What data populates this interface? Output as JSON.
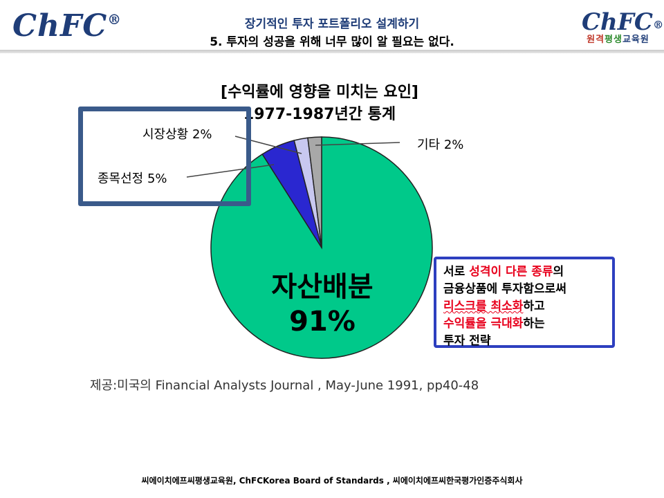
{
  "header": {
    "logo_left": "ChFC",
    "logo_mark": "®",
    "logo_right": "ChFC",
    "logo_right_sub": [
      "원격",
      "평생",
      "교육원"
    ],
    "logo_right_sub_colors": [
      "#c0392b",
      "#2e8b2e",
      "#1f3d78"
    ],
    "title_line1": "장기적인 투자 포트폴리오 설계하기",
    "title_line2": "5. 투자의 성공을 위해 너무 많이 알 필요는 없다."
  },
  "chart_data": {
    "type": "pie",
    "title": "[수익률에 영향을 미치는 요인]",
    "subtitle": "1977-1987년간 통계",
    "slices": [
      {
        "label": "자산배분",
        "value": 91,
        "display": "91%",
        "color": "#00c98a"
      },
      {
        "label": "종목선정",
        "value": 5,
        "display": "5%",
        "color": "#2a27d0"
      },
      {
        "label": "시장상황",
        "value": 2,
        "display": "2%",
        "color": "#c8c8f0"
      },
      {
        "label": "기타",
        "value": 2,
        "display": "2%",
        "color": "#a8a8a8"
      }
    ],
    "callout_labels": {
      "market": "시장상황 2%",
      "stock": "종목선정 5%",
      "other": "기타 2%"
    }
  },
  "note": {
    "l1a": "서로 ",
    "l1b": "성격이 다른 종류",
    "l1c": "의",
    "l2": "금융상품에 투자함으로써",
    "l3a": "리스크를 최소화",
    "l3b": "하고",
    "l4a": "수익률을 극대화",
    "l4b": "하는",
    "l5": "투자 전략"
  },
  "source": "제공:미국의 Financial Analysts Journal , May-June 1991, pp40-48",
  "footer": "씨에이치에프씨평생교육원,  ChFCKorea  Board  of  Standards  , 씨에이치에프씨한국평가인증주식회사"
}
